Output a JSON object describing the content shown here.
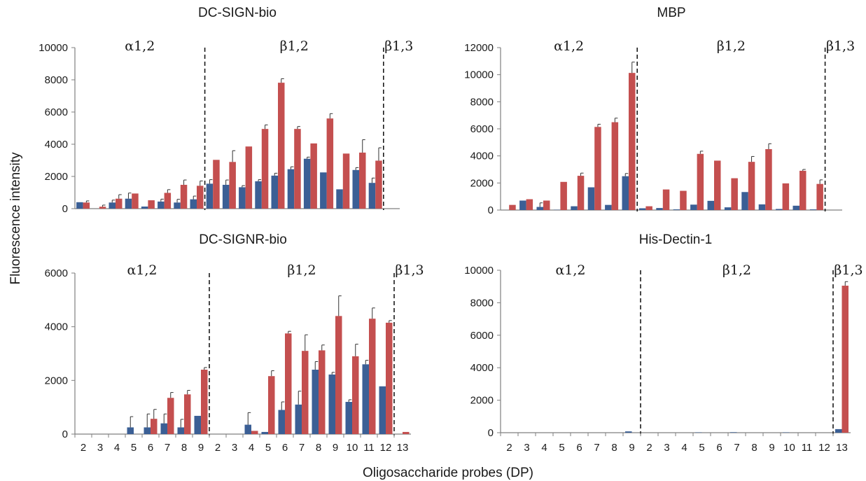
{
  "figure": {
    "ylabel": "Fluorescence intensity",
    "xlabel": "Oligosaccharide probes (DP)"
  },
  "chart_data": [
    {
      "type": "bar",
      "title": "DC-SIGN-bio",
      "ylim": [
        0,
        10000
      ],
      "yticks": [
        0,
        2000,
        4000,
        6000,
        8000,
        10000
      ],
      "categories": [
        "2",
        "3",
        "4",
        "5",
        "6",
        "7",
        "8",
        "9",
        "2",
        "3",
        "4",
        "5",
        "6",
        "7",
        "8",
        "9",
        "10",
        "11",
        "12",
        "13"
      ],
      "regions": [
        {
          "label": "α1,2",
          "start": 0,
          "end": 7
        },
        {
          "label": "β1,2",
          "start": 8,
          "end": 18
        },
        {
          "label": "β1,3",
          "start": 19,
          "end": 19
        }
      ],
      "series": [
        {
          "color": "#3b5f95",
          "values": [
            400,
            0,
            380,
            620,
            130,
            440,
            380,
            580,
            1550,
            1480,
            1330,
            1700,
            2050,
            2450,
            3100,
            2250,
            1200,
            2400,
            1600,
            0
          ],
          "errors": [
            0,
            0,
            150,
            350,
            0,
            150,
            200,
            200,
            250,
            300,
            100,
            100,
            150,
            150,
            100,
            0,
            0,
            150,
            300,
            0
          ]
        },
        {
          "color": "#c44f4f",
          "values": [
            380,
            120,
            620,
            940,
            520,
            980,
            1480,
            1420,
            3030,
            2900,
            3860,
            4950,
            7820,
            4950,
            4050,
            5600,
            3420,
            3480,
            2980,
            0
          ],
          "errors": [
            100,
            100,
            250,
            0,
            0,
            200,
            300,
            300,
            0,
            700,
            0,
            250,
            250,
            150,
            0,
            300,
            0,
            800,
            800,
            0
          ]
        }
      ]
    },
    {
      "type": "bar",
      "title": "MBP",
      "ylim": [
        0,
        12000
      ],
      "yticks": [
        0,
        2000,
        4000,
        6000,
        8000,
        10000,
        12000
      ],
      "categories": [
        "2",
        "3",
        "4",
        "5",
        "6",
        "7",
        "8",
        "9",
        "2",
        "3",
        "4",
        "5",
        "6",
        "7",
        "8",
        "9",
        "10",
        "11",
        "12",
        "13"
      ],
      "regions": [
        {
          "label": "α1,2",
          "start": 0,
          "end": 7
        },
        {
          "label": "β1,2",
          "start": 8,
          "end": 18
        },
        {
          "label": "β1,3",
          "start": 19,
          "end": 19
        }
      ],
      "series": [
        {
          "color": "#3b5f95",
          "values": [
            0,
            700,
            230,
            20,
            280,
            1680,
            380,
            2500,
            130,
            150,
            50,
            400,
            680,
            200,
            1330,
            420,
            80,
            320,
            50,
            0
          ],
          "errors": [
            0,
            0,
            300,
            0,
            0,
            0,
            0,
            200,
            0,
            0,
            0,
            0,
            0,
            0,
            0,
            0,
            0,
            0,
            0,
            0
          ]
        },
        {
          "color": "#c44f4f",
          "values": [
            380,
            800,
            700,
            2080,
            2530,
            6140,
            6490,
            10130,
            280,
            1520,
            1420,
            4150,
            3650,
            2350,
            3560,
            4500,
            1970,
            2900,
            1930,
            0
          ],
          "errors": [
            0,
            0,
            0,
            0,
            200,
            200,
            300,
            800,
            0,
            0,
            0,
            200,
            0,
            0,
            400,
            400,
            0,
            100,
            300,
            0
          ]
        }
      ]
    },
    {
      "type": "bar",
      "title": "DC-SIGNR-bio",
      "ylim": [
        0,
        6000
      ],
      "yticks": [
        0,
        2000,
        4000,
        6000
      ],
      "categories": [
        "2",
        "3",
        "4",
        "5",
        "6",
        "7",
        "8",
        "9",
        "2",
        "3",
        "4",
        "5",
        "6",
        "7",
        "8",
        "9",
        "10",
        "11",
        "12",
        "13"
      ],
      "regions": [
        {
          "label": "α1,2",
          "start": 0,
          "end": 7
        },
        {
          "label": "β1,2",
          "start": 8,
          "end": 18
        },
        {
          "label": "β1,3",
          "start": 19,
          "end": 19
        }
      ],
      "series": [
        {
          "color": "#3b5f95",
          "values": [
            0,
            0,
            0,
            250,
            250,
            400,
            250,
            680,
            0,
            0,
            350,
            80,
            900,
            1100,
            2400,
            2220,
            1200,
            2600,
            1780,
            0
          ],
          "errors": [
            0,
            0,
            0,
            400,
            500,
            350,
            300,
            0,
            0,
            0,
            450,
            0,
            300,
            500,
            300,
            80,
            80,
            150,
            0,
            0
          ]
        },
        {
          "color": "#c44f4f",
          "values": [
            0,
            0,
            0,
            0,
            570,
            1350,
            1480,
            2400,
            0,
            0,
            120,
            2160,
            3750,
            3100,
            3120,
            4400,
            2900,
            4300,
            4150,
            80
          ],
          "errors": [
            0,
            0,
            0,
            0,
            350,
            200,
            150,
            80,
            0,
            0,
            0,
            200,
            80,
            600,
            200,
            750,
            450,
            400,
            80,
            0
          ]
        }
      ]
    },
    {
      "type": "bar",
      "title": "His-Dectin-1",
      "ylim": [
        0,
        10000
      ],
      "yticks": [
        0,
        2000,
        4000,
        6000,
        8000,
        10000
      ],
      "categories": [
        "2",
        "3",
        "4",
        "5",
        "6",
        "7",
        "8",
        "9",
        "2",
        "3",
        "4",
        "5",
        "6",
        "7",
        "8",
        "9",
        "10",
        "11",
        "12",
        "13"
      ],
      "regions": [
        {
          "label": "α1,2",
          "start": 0,
          "end": 7
        },
        {
          "label": "β1,2",
          "start": 8,
          "end": 18
        },
        {
          "label": "β1,3",
          "start": 19,
          "end": 19
        }
      ],
      "series": [
        {
          "color": "#3b5f95",
          "values": [
            0,
            0,
            0,
            0,
            0,
            0,
            0,
            80,
            0,
            0,
            0,
            20,
            0,
            30,
            0,
            0,
            20,
            0,
            0,
            220
          ],
          "errors": [
            0,
            0,
            0,
            0,
            0,
            0,
            0,
            0,
            0,
            0,
            0,
            0,
            0,
            0,
            0,
            0,
            0,
            0,
            0,
            0
          ]
        },
        {
          "color": "#c44f4f",
          "values": [
            0,
            0,
            0,
            0,
            0,
            0,
            0,
            0,
            0,
            0,
            0,
            0,
            0,
            0,
            0,
            0,
            0,
            0,
            0,
            9050
          ],
          "errors": [
            0,
            0,
            0,
            0,
            0,
            0,
            0,
            0,
            0,
            0,
            0,
            0,
            0,
            0,
            0,
            0,
            0,
            0,
            0,
            250
          ]
        }
      ]
    }
  ]
}
